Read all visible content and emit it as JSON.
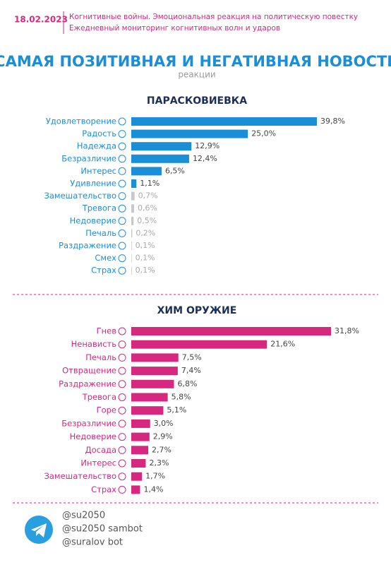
{
  "header": {
    "date": "18.02.2023",
    "line1": "Когнитивные войны. Эмоциональная реакция на политическую повестку",
    "line2": "Ежедневный мониторинг когнитивных волн и ударов"
  },
  "title": "САМАЯ ПОЗИТИВНАЯ И НЕГАТИВНАЯ НОВОСТИ",
  "subtitle": "реакции",
  "chart_data": [
    {
      "type": "bar",
      "orientation": "horizontal",
      "title": "ПАРАСКОВИЕВКА",
      "categories": [
        "Удовлетворение",
        "Радость",
        "Надежда",
        "Безразличие",
        "Интерес",
        "Удивление",
        "Замешательство",
        "Тревога",
        "Недоверие",
        "Печаль",
        "Раздражение",
        "Смех",
        "Страх"
      ],
      "values": [
        39.8,
        25.0,
        12.9,
        12.4,
        6.5,
        1.1,
        0.7,
        0.6,
        0.5,
        0.2,
        0.1,
        0.1,
        0.1
      ],
      "value_labels": [
        "39,8%",
        "25,0%",
        "12,9%",
        "12,4%",
        "6,5%",
        "1,1%",
        "0,7%",
        "0,6%",
        "0,5%",
        "0,2%",
        "0,1%",
        "0,1%",
        "0,1%"
      ],
      "colors": [
        "#1a8fd8",
        "#1a8fd8",
        "#1a8fd8",
        "#1a8fd8",
        "#1a8fd8",
        "#1a8fd8",
        "#c8c8c8",
        "#c8c8c8",
        "#c8c8c8",
        "#c8c8c8",
        "#c8c8c8",
        "#c8c8c8",
        "#c8c8c8"
      ]
    },
    {
      "type": "bar",
      "orientation": "horizontal",
      "title": "ХИМ ОРУЖИЕ",
      "categories": [
        "Гнев",
        "Ненависть",
        "Печаль",
        "Отвращение",
        "Раздражение",
        "Тревога",
        "Горе",
        "Безразличие",
        "Недоверие",
        "Досада",
        "Интерес",
        "Замешательство",
        "Страх"
      ],
      "values": [
        31.8,
        21.6,
        7.5,
        7.4,
        6.8,
        5.8,
        5.1,
        3.0,
        2.9,
        2.7,
        2.3,
        1.7,
        1.4
      ],
      "value_labels": [
        "31,8%",
        "21,6%",
        "7,5%",
        "7,4%",
        "6,8%",
        "5,8%",
        "5,1%",
        "3,0%",
        "2,9%",
        "2,7%",
        "2,3%",
        "1,7%",
        "1,4%"
      ],
      "colors": [
        "#d6287f",
        "#d6287f",
        "#d6287f",
        "#d6287f",
        "#d6287f",
        "#d6287f",
        "#d6287f",
        "#d6287f",
        "#d6287f",
        "#d6287f",
        "#d6287f",
        "#d6287f",
        "#d6287f"
      ]
    }
  ],
  "footer": {
    "handles": [
      "@su2050",
      "@su2050 sambot",
      "@suralov bot"
    ]
  }
}
